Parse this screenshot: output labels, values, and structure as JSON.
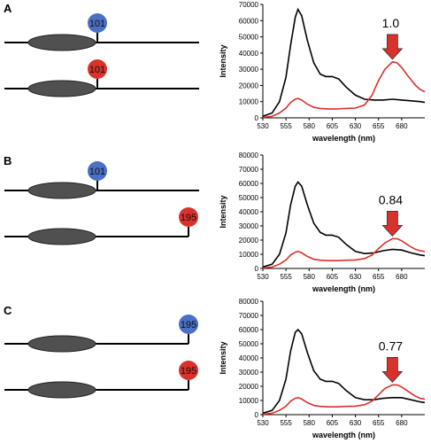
{
  "colors": {
    "donor": "#4a6fc4",
    "acceptor": "#d9312b",
    "spectrum_black": "#000000",
    "spectrum_red": "#d9312b",
    "ellipse": "#505050",
    "arrow": "#d9312b"
  },
  "panels": [
    {
      "letter": "A",
      "constructs": [
        {
          "label": "101",
          "color": "donor"
        },
        {
          "label": "101",
          "color": "acceptor"
        }
      ],
      "ratio": "1.0"
    },
    {
      "letter": "B",
      "constructs": [
        {
          "label": "101",
          "color": "donor"
        },
        {
          "label": "195",
          "color": "acceptor"
        }
      ],
      "ratio": "0.84"
    },
    {
      "letter": "C",
      "constructs": [
        {
          "label": "195",
          "color": "donor"
        },
        {
          "label": "195",
          "color": "acceptor"
        }
      ],
      "ratio": "0.77"
    }
  ],
  "chart_data": [
    {
      "type": "line",
      "xlabel": "wavelength (nm)",
      "ylabel": "Intensity",
      "xlim": [
        530,
        705
      ],
      "ylim": [
        0,
        70000
      ],
      "xticks": [
        530,
        555,
        580,
        605,
        630,
        655,
        680
      ],
      "yticks": [
        0,
        10000,
        20000,
        30000,
        40000,
        50000,
        60000,
        70000
      ],
      "annotation": "1.0",
      "series": [
        {
          "color": "#000000",
          "x": [
            530,
            540,
            548,
            555,
            560,
            565,
            568,
            572,
            578,
            585,
            592,
            598,
            605,
            612,
            620,
            630,
            640,
            650,
            660,
            670,
            680,
            690,
            700,
            705
          ],
          "y": [
            1000,
            3000,
            10000,
            25000,
            45000,
            62000,
            67000,
            63000,
            48000,
            34000,
            27000,
            25500,
            25500,
            24000,
            19000,
            14000,
            11500,
            11000,
            11000,
            11500,
            11000,
            10500,
            10000,
            9500
          ]
        },
        {
          "color": "#d9312b",
          "x": [
            530,
            540,
            548,
            555,
            560,
            565,
            568,
            572,
            578,
            585,
            592,
            600,
            610,
            620,
            630,
            640,
            648,
            655,
            662,
            670,
            675,
            680,
            688,
            695,
            700,
            705
          ],
          "y": [
            300,
            1000,
            3000,
            6000,
            9500,
            11500,
            12000,
            11000,
            8500,
            6500,
            5800,
            5500,
            5500,
            5800,
            6000,
            8000,
            14000,
            23000,
            30000,
            34500,
            34000,
            31000,
            25000,
            20000,
            17500,
            16000
          ]
        }
      ]
    },
    {
      "type": "line",
      "xlabel": "wavelength (nm)",
      "ylabel": "Intensity",
      "xlim": [
        530,
        705
      ],
      "ylim": [
        0,
        80000
      ],
      "xticks": [
        530,
        555,
        580,
        605,
        630,
        655,
        680
      ],
      "yticks": [
        0,
        10000,
        20000,
        30000,
        40000,
        50000,
        60000,
        70000,
        80000
      ],
      "annotation": "0.84",
      "series": [
        {
          "color": "#000000",
          "x": [
            530,
            540,
            548,
            555,
            560,
            565,
            568,
            572,
            578,
            585,
            592,
            598,
            605,
            612,
            620,
            630,
            640,
            650,
            660,
            670,
            680,
            690,
            700,
            705
          ],
          "y": [
            1000,
            3000,
            10000,
            25000,
            45000,
            58000,
            61000,
            58000,
            45000,
            32000,
            25500,
            23500,
            23500,
            22000,
            17000,
            12000,
            10500,
            11000,
            12500,
            13500,
            13000,
            11000,
            9500,
            9000
          ]
        },
        {
          "color": "#d9312b",
          "x": [
            530,
            540,
            548,
            555,
            560,
            565,
            568,
            572,
            578,
            585,
            592,
            600,
            610,
            620,
            630,
            640,
            648,
            655,
            662,
            670,
            675,
            680,
            688,
            695,
            700,
            705
          ],
          "y": [
            300,
            1000,
            3000,
            6000,
            9500,
            11500,
            12000,
            11000,
            8500,
            6500,
            5800,
            5500,
            5500,
            5800,
            6000,
            7000,
            9500,
            14000,
            18000,
            21000,
            21000,
            19500,
            16000,
            13500,
            12500,
            12000
          ]
        }
      ]
    },
    {
      "type": "line",
      "xlabel": "wavelength (nm)",
      "ylabel": "Intensity",
      "xlim": [
        530,
        705
      ],
      "ylim": [
        0,
        80000
      ],
      "xticks": [
        530,
        555,
        580,
        605,
        630,
        655,
        680
      ],
      "yticks": [
        0,
        10000,
        20000,
        30000,
        40000,
        50000,
        60000,
        70000,
        80000
      ],
      "annotation": "0.77",
      "series": [
        {
          "color": "#000000",
          "x": [
            530,
            540,
            548,
            555,
            560,
            565,
            568,
            572,
            578,
            585,
            592,
            598,
            605,
            612,
            620,
            630,
            640,
            650,
            660,
            670,
            680,
            690,
            700,
            705
          ],
          "y": [
            1000,
            3000,
            10000,
            25000,
            45000,
            58000,
            60000,
            57000,
            44000,
            31000,
            25000,
            23500,
            23500,
            22000,
            17000,
            12000,
            10500,
            10500,
            11500,
            12000,
            12000,
            10500,
            9000,
            8500
          ]
        },
        {
          "color": "#d9312b",
          "x": [
            530,
            540,
            548,
            555,
            560,
            565,
            568,
            572,
            578,
            585,
            592,
            600,
            610,
            620,
            630,
            640,
            648,
            655,
            662,
            670,
            675,
            680,
            688,
            695,
            700,
            705
          ],
          "y": [
            300,
            1000,
            3000,
            6000,
            9500,
            11500,
            12000,
            11000,
            8500,
            6500,
            5800,
            5500,
            5500,
            5800,
            6000,
            7000,
            9500,
            14000,
            18500,
            21000,
            21000,
            19500,
            16000,
            13000,
            11500,
            11000
          ]
        }
      ]
    }
  ]
}
